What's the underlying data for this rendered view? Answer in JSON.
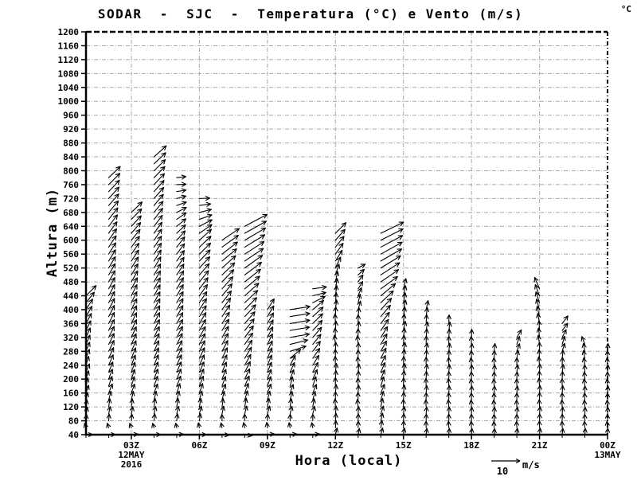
{
  "figure": {
    "title": "SODAR  -  SJC  -  Temperatura (°C) e Vento (m/s)",
    "top_right_unit": "°C",
    "xlabel": "Hora (local)",
    "ylabel": "Altura (m)",
    "legend": {
      "value": "10",
      "unit": "m/s",
      "reference_speed_ms": 10
    }
  },
  "chart_data": {
    "type": "wind-vector-time-height-profile",
    "title": "SODAR  -  SJC  -  Temperatura (°C) e Vento (m/s)",
    "xlabel": "Hora (local)",
    "ylabel": "Altura (m)",
    "ylim": [
      40,
      1200
    ],
    "y_tick_step_m": 40,
    "y_ticks": [
      40,
      80,
      120,
      160,
      200,
      240,
      280,
      320,
      360,
      400,
      440,
      480,
      520,
      560,
      600,
      640,
      680,
      720,
      760,
      800,
      840,
      880,
      920,
      960,
      1000,
      1040,
      1080,
      1120,
      1160,
      1200
    ],
    "x_range_hours": [
      1,
      24
    ],
    "x_ticks": [
      {
        "hour": 3,
        "label": "03Z",
        "sublabels": [
          "12MAY",
          "2016"
        ]
      },
      {
        "hour": 6,
        "label": "06Z",
        "sublabels": []
      },
      {
        "hour": 9,
        "label": "09Z",
        "sublabels": []
      },
      {
        "hour": 12,
        "label": "12Z",
        "sublabels": []
      },
      {
        "hour": 15,
        "label": "15Z",
        "sublabels": []
      },
      {
        "hour": 18,
        "label": "18Z",
        "sublabels": []
      },
      {
        "hour": 21,
        "label": "21Z",
        "sublabels": []
      },
      {
        "hour": 24,
        "label": "00Z",
        "sublabels": [
          "13MAY"
        ]
      }
    ],
    "grid": {
      "on": true,
      "color": "#a8a8a8",
      "dash": "5 2 1 2"
    },
    "colors": {
      "foreground": "#000000",
      "background": "#ffffff"
    },
    "vector_level_step_m": 20,
    "reference_vector": {
      "speed_ms": 10,
      "label": "10",
      "unit": "m/s"
    },
    "direction_convention": "degrees, 0 = east (right), 90 = north (up)",
    "direction_jitter_deg": 4,
    "columns": [
      {
        "hour": 1,
        "label": "01Z",
        "top_m": 440,
        "profile": [
          [
            40,
            2.3,
            5
          ],
          [
            60,
            1.6,
            105
          ],
          [
            80,
            2.2,
            85
          ],
          [
            160,
            2.8,
            75
          ],
          [
            240,
            3.2,
            70
          ],
          [
            320,
            3.6,
            66
          ],
          [
            400,
            4.3,
            58
          ],
          [
            440,
            5.0,
            45
          ]
        ]
      },
      {
        "hour": 2,
        "label": "02Z",
        "top_m": 780,
        "profile": [
          [
            40,
            2.3,
            5
          ],
          [
            60,
            1.6,
            105
          ],
          [
            80,
            2.3,
            85
          ],
          [
            160,
            3.4,
            72
          ],
          [
            280,
            4.2,
            64
          ],
          [
            440,
            4.4,
            62
          ],
          [
            560,
            4.6,
            58
          ],
          [
            680,
            5.2,
            50
          ],
          [
            780,
            5.6,
            44
          ]
        ]
      },
      {
        "hour": 3,
        "label": "03Z",
        "top_m": 680,
        "profile": [
          [
            40,
            2.3,
            8
          ],
          [
            60,
            1.6,
            108
          ],
          [
            80,
            2.3,
            85
          ],
          [
            160,
            3.3,
            74
          ],
          [
            280,
            4.0,
            66
          ],
          [
            440,
            4.3,
            63
          ],
          [
            560,
            4.6,
            55
          ],
          [
            640,
            5.0,
            47
          ],
          [
            680,
            5.2,
            44
          ]
        ]
      },
      {
        "hour": 4,
        "label": "04Z",
        "top_m": 840,
        "profile": [
          [
            40,
            2.3,
            5
          ],
          [
            60,
            1.6,
            105
          ],
          [
            80,
            2.4,
            84
          ],
          [
            180,
            3.6,
            70
          ],
          [
            320,
            4.2,
            64
          ],
          [
            480,
            4.4,
            60
          ],
          [
            620,
            4.7,
            54
          ],
          [
            740,
            5.2,
            48
          ],
          [
            840,
            5.7,
            42
          ]
        ]
      },
      {
        "hour": 5,
        "label": "05Z",
        "top_m": 780,
        "profile": [
          [
            40,
            2.3,
            8
          ],
          [
            60,
            1.6,
            100
          ],
          [
            80,
            2.4,
            83
          ],
          [
            180,
            3.7,
            68
          ],
          [
            320,
            4.3,
            62
          ],
          [
            460,
            4.5,
            59
          ],
          [
            580,
            4.5,
            52
          ],
          [
            660,
            4.0,
            35
          ],
          [
            720,
            3.3,
            12
          ],
          [
            780,
            3.2,
            4
          ]
        ]
      },
      {
        "hour": 6,
        "label": "06Z",
        "top_m": 720,
        "profile": [
          [
            40,
            2.4,
            5
          ],
          [
            60,
            1.7,
            100
          ],
          [
            80,
            2.5,
            82
          ],
          [
            180,
            3.7,
            68
          ],
          [
            300,
            4.2,
            62
          ],
          [
            420,
            4.6,
            56
          ],
          [
            520,
            5.3,
            47
          ],
          [
            600,
            5.6,
            42
          ],
          [
            660,
            4.6,
            20
          ],
          [
            720,
            3.6,
            2
          ]
        ]
      },
      {
        "hour": 7,
        "label": "07Z",
        "top_m": 600,
        "profile": [
          [
            40,
            2.4,
            0
          ],
          [
            60,
            1.7,
            100
          ],
          [
            100,
            2.7,
            82
          ],
          [
            180,
            3.5,
            70
          ],
          [
            280,
            4.2,
            62
          ],
          [
            380,
            4.8,
            56
          ],
          [
            460,
            5.6,
            48
          ],
          [
            540,
            6.6,
            40
          ],
          [
            600,
            7.2,
            34
          ]
        ]
      },
      {
        "hour": 8,
        "label": "08Z",
        "top_m": 640,
        "profile": [
          [
            40,
            2.5,
            355
          ],
          [
            60,
            1.8,
            100
          ],
          [
            100,
            2.8,
            80
          ],
          [
            180,
            3.8,
            66
          ],
          [
            280,
            4.6,
            57
          ],
          [
            380,
            5.6,
            47
          ],
          [
            460,
            6.8,
            40
          ],
          [
            540,
            7.8,
            34
          ],
          [
            640,
            8.8,
            28
          ]
        ]
      },
      {
        "hour": 9,
        "label": "09Z",
        "top_m": 400,
        "profile": [
          [
            40,
            2.4,
            10
          ],
          [
            60,
            1.8,
            95
          ],
          [
            100,
            2.8,
            78
          ],
          [
            180,
            3.5,
            70
          ],
          [
            260,
            3.9,
            66
          ],
          [
            320,
            4.1,
            63
          ],
          [
            400,
            4.4,
            58
          ]
        ]
      },
      {
        "hour": 10,
        "label": "10Z",
        "top_m": 400,
        "profile": [
          [
            40,
            2.3,
            10
          ],
          [
            60,
            1.8,
            98
          ],
          [
            100,
            2.7,
            80
          ],
          [
            180,
            3.3,
            72
          ],
          [
            240,
            3.8,
            62
          ],
          [
            280,
            5.8,
            18
          ],
          [
            320,
            6.8,
            10
          ],
          [
            400,
            7.0,
            9
          ]
        ]
      },
      {
        "hour": 11,
        "label": "11Z",
        "top_m": 460,
        "profile": [
          [
            40,
            2.3,
            10
          ],
          [
            60,
            1.8,
            98
          ],
          [
            100,
            2.7,
            80
          ],
          [
            180,
            3.4,
            68
          ],
          [
            260,
            4.2,
            55
          ],
          [
            340,
            4.8,
            47
          ],
          [
            400,
            4.9,
            40
          ],
          [
            440,
            4.7,
            14
          ],
          [
            460,
            4.8,
            8
          ]
        ]
      },
      {
        "hour": 12,
        "label": "12Z",
        "top_m": 620,
        "profile": [
          [
            40,
            2.4,
            80
          ],
          [
            120,
            2.8,
            90
          ],
          [
            200,
            3.0,
            86
          ],
          [
            300,
            3.2,
            93
          ],
          [
            400,
            3.4,
            87
          ],
          [
            480,
            3.7,
            78
          ],
          [
            540,
            4.4,
            58
          ],
          [
            620,
            5.2,
            45
          ]
        ]
      },
      {
        "hour": 13,
        "label": "13Z",
        "top_m": 520,
        "profile": [
          [
            40,
            2.2,
            82
          ],
          [
            120,
            2.6,
            93
          ],
          [
            200,
            2.8,
            87
          ],
          [
            300,
            3.0,
            92
          ],
          [
            380,
            3.1,
            84
          ],
          [
            460,
            3.0,
            62
          ],
          [
            520,
            2.8,
            32
          ]
        ]
      },
      {
        "hour": 14,
        "label": "14Z",
        "top_m": 620,
        "profile": [
          [
            40,
            2.4,
            78
          ],
          [
            120,
            3.0,
            74
          ],
          [
            220,
            3.6,
            66
          ],
          [
            320,
            4.4,
            58
          ],
          [
            400,
            5.4,
            47
          ],
          [
            460,
            7.2,
            36
          ],
          [
            540,
            8.4,
            30
          ],
          [
            620,
            8.8,
            26
          ]
        ]
      },
      {
        "hour": 15,
        "label": "15Z",
        "top_m": 470,
        "profile": [
          [
            40,
            2.3,
            85
          ],
          [
            120,
            2.6,
            88
          ],
          [
            220,
            3.0,
            85
          ],
          [
            320,
            3.2,
            83
          ],
          [
            400,
            3.4,
            81
          ],
          [
            470,
            3.7,
            76
          ]
        ]
      },
      {
        "hour": 16,
        "label": "16Z",
        "top_m": 400,
        "profile": [
          [
            40,
            2.2,
            87
          ],
          [
            120,
            2.5,
            90
          ],
          [
            240,
            2.8,
            87
          ],
          [
            330,
            3.0,
            85
          ],
          [
            400,
            3.2,
            82
          ]
        ]
      },
      {
        "hour": 17,
        "label": "17Z",
        "top_m": 360,
        "profile": [
          [
            40,
            2.2,
            89
          ],
          [
            120,
            2.5,
            91
          ],
          [
            240,
            2.7,
            88
          ],
          [
            360,
            3.0,
            85
          ]
        ]
      },
      {
        "hour": 18,
        "label": "18Z",
        "top_m": 320,
        "profile": [
          [
            40,
            2.2,
            90
          ],
          [
            120,
            2.4,
            91
          ],
          [
            240,
            2.6,
            92
          ],
          [
            320,
            2.8,
            88
          ]
        ]
      },
      {
        "hour": 19,
        "label": "19Z",
        "top_m": 280,
        "profile": [
          [
            40,
            2.1,
            90
          ],
          [
            120,
            2.4,
            92
          ],
          [
            200,
            2.5,
            90
          ],
          [
            280,
            2.7,
            88
          ]
        ]
      },
      {
        "hour": 20,
        "label": "20Z",
        "top_m": 330,
        "profile": [
          [
            40,
            2.2,
            90
          ],
          [
            140,
            2.4,
            90
          ],
          [
            240,
            2.6,
            87
          ],
          [
            300,
            2.9,
            68
          ],
          [
            330,
            3.1,
            55
          ]
        ]
      },
      {
        "hour": 21,
        "label": "21Z",
        "top_m": 460,
        "profile": [
          [
            40,
            2.3,
            88
          ],
          [
            140,
            2.6,
            90
          ],
          [
            260,
            3.0,
            93
          ],
          [
            340,
            3.4,
            97
          ],
          [
            400,
            3.8,
            106
          ],
          [
            460,
            4.3,
            113
          ]
        ]
      },
      {
        "hour": 22,
        "label": "22Z",
        "top_m": 360,
        "profile": [
          [
            40,
            2.2,
            88
          ],
          [
            140,
            2.5,
            90
          ],
          [
            260,
            2.8,
            84
          ],
          [
            330,
            3.1,
            60
          ],
          [
            360,
            3.3,
            50
          ]
        ]
      },
      {
        "hour": 23,
        "label": "23Z",
        "top_m": 300,
        "profile": [
          [
            40,
            2.2,
            90
          ],
          [
            140,
            2.4,
            92
          ],
          [
            240,
            2.6,
            96
          ],
          [
            300,
            2.9,
            108
          ]
        ]
      },
      {
        "hour": 24,
        "label": "00Z",
        "top_m": 290,
        "profile": [
          [
            40,
            2.2,
            92
          ],
          [
            140,
            2.4,
            90
          ],
          [
            240,
            2.6,
            91
          ],
          [
            290,
            2.7,
            90
          ]
        ]
      }
    ]
  }
}
